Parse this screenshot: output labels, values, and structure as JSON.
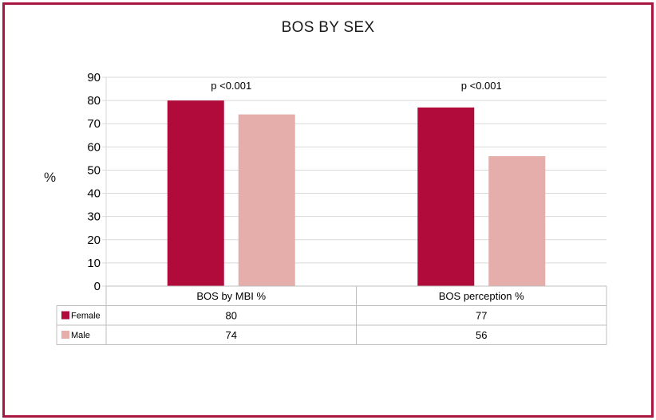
{
  "chart_data": {
    "type": "bar",
    "title": "BOS BY SEX",
    "ylabel": "%",
    "xlabel": "",
    "ylim": [
      0,
      90
    ],
    "yticks": [
      0,
      10,
      20,
      30,
      40,
      50,
      60,
      70,
      80,
      90
    ],
    "categories": [
      "BOS by MBI %",
      "BOS perception %"
    ],
    "series": [
      {
        "name": "Female",
        "values": [
          80,
          77
        ],
        "color": "#b00b3b"
      },
      {
        "name": "Male",
        "values": [
          74,
          56
        ],
        "color": "#e5aeab"
      }
    ],
    "annotations": [
      "p <0.001",
      "p <0.001"
    ],
    "grid": true,
    "data_table": true
  },
  "colors": {
    "border": "#a8173f",
    "grid": "#d9d9d9",
    "table_line": "#bfbfbf"
  }
}
